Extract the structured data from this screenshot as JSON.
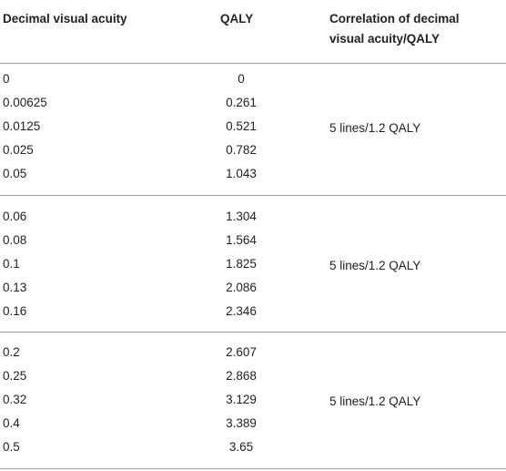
{
  "table": {
    "headers": {
      "col1": "Decimal visual acuity",
      "col2": "QALY",
      "col3_line1": "Correlation of decimal",
      "col3_line2": "visual acuity/QALY"
    },
    "groups": [
      {
        "correlation": "5 lines/1.2 QALY",
        "rows": [
          {
            "acuity": "0",
            "qaly": "0"
          },
          {
            "acuity": "0.00625",
            "qaly": "0.261"
          },
          {
            "acuity": "0.0125",
            "qaly": "0.521"
          },
          {
            "acuity": "0.025",
            "qaly": "0.782"
          },
          {
            "acuity": "0.05",
            "qaly": "1.043"
          }
        ]
      },
      {
        "correlation": "5 lines/1.2 QALY",
        "rows": [
          {
            "acuity": "0.06",
            "qaly": "1.304"
          },
          {
            "acuity": "0.08",
            "qaly": "1.564"
          },
          {
            "acuity": "0.1",
            "qaly": "1.825"
          },
          {
            "acuity": "0.13",
            "qaly": "2.086"
          },
          {
            "acuity": "0.16",
            "qaly": "2.346"
          }
        ]
      },
      {
        "correlation": "5 lines/1.2 QALY",
        "rows": [
          {
            "acuity": "0.2",
            "qaly": "2.607"
          },
          {
            "acuity": "0.25",
            "qaly": "2.868"
          },
          {
            "acuity": "0.32",
            "qaly": "3.129"
          },
          {
            "acuity": "0.4",
            "qaly": "3.389"
          },
          {
            "acuity": "0.5",
            "qaly": "3.65"
          }
        ]
      }
    ]
  }
}
